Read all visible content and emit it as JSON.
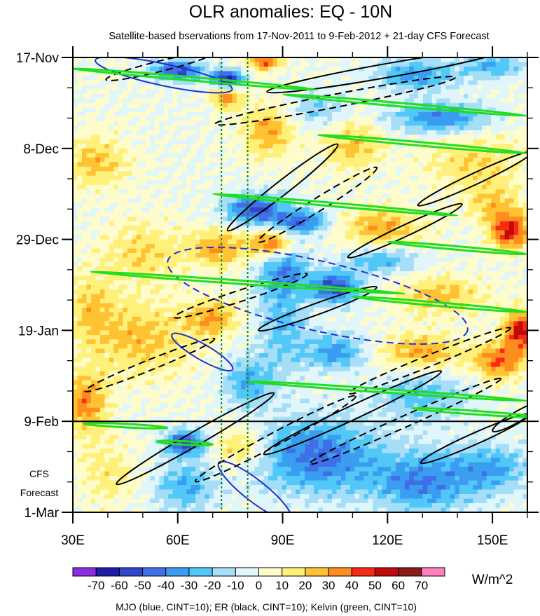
{
  "chart_data": {
    "type": "heatmap",
    "title": "OLR anomalies: EQ - 10N",
    "subtitle": "Satellite-based bservations from 17-Nov-2011 to 9-Feb-2012 + 21-day CFS Forecast",
    "x_axis": {
      "range": [
        30,
        160
      ],
      "ticks": [
        30,
        60,
        90,
        120,
        150
      ],
      "tick_labels": [
        "30E",
        "60E",
        "90E",
        "120E",
        "150E"
      ]
    },
    "y_axis": {
      "range_days": [
        0,
        105
      ],
      "ticks": [
        {
          "label": "17-Nov",
          "day": 0
        },
        {
          "label": "8-Dec",
          "day": 21
        },
        {
          "label": "29-Dec",
          "day": 42
        },
        {
          "label": "19-Jan",
          "day": 63
        },
        {
          "label": "9-Feb",
          "day": 84
        },
        {
          "label": "1-Mar",
          "day": 105
        }
      ]
    },
    "forecast_label_line1": "CFS",
    "forecast_label_line2": "Forecast",
    "forecast_start_day": 84,
    "reference_lon_lines": [
      72.5,
      80
    ],
    "colorbar": {
      "units": "W/m^2",
      "labels": [
        "-70",
        "-60",
        "-50",
        "-40",
        "-30",
        "-20",
        "-10",
        "0",
        "10",
        "20",
        "30",
        "40",
        "50",
        "60",
        "70"
      ],
      "colors": [
        "#8b2be2",
        "#1e1ea8",
        "#2e46c8",
        "#3f6fe6",
        "#3b9df0",
        "#52c8f8",
        "#a6def8",
        "#e0f6fb",
        "#fffccc",
        "#fff07a",
        "#ffc232",
        "#ff8c1e",
        "#f82a14",
        "#c00a0a",
        "#8b1a1a",
        "#ff7fbf"
      ]
    },
    "legend_text": "MJO (blue, CINT=10); ER (black, CINT=10); Kelvin (green, CINT=10)",
    "series_colors": {
      "MJO": "#1f2fd6",
      "ER": "#000000",
      "Kelvin": "#22dd22"
    },
    "anomaly_regions": [
      {
        "lon": 60,
        "day": 3,
        "val": -55,
        "sx": 5,
        "sy": 1.6
      },
      {
        "lon": 74,
        "day": 5,
        "val": -70,
        "sx": 3,
        "sy": 1.5
      },
      {
        "lon": 74,
        "day": 9,
        "val": 35,
        "sx": 3,
        "sy": 2
      },
      {
        "lon": 85,
        "day": 1,
        "val": 45,
        "sx": 3,
        "sy": 1.2
      },
      {
        "lon": 128,
        "day": 4,
        "val": -35,
        "sx": 8,
        "sy": 2.5
      },
      {
        "lon": 150,
        "day": 2,
        "val": -30,
        "sx": 6,
        "sy": 2
      },
      {
        "lon": 135,
        "day": 14,
        "val": -40,
        "sx": 10,
        "sy": 2.5
      },
      {
        "lon": 100,
        "day": 12,
        "val": -20,
        "sx": 6,
        "sy": 3
      },
      {
        "lon": 37,
        "day": 24,
        "val": 25,
        "sx": 6,
        "sy": 4
      },
      {
        "lon": 86,
        "day": 17,
        "val": 30,
        "sx": 5,
        "sy": 4
      },
      {
        "lon": 110,
        "day": 20,
        "val": 25,
        "sx": 6,
        "sy": 4
      },
      {
        "lon": 145,
        "day": 24,
        "val": 20,
        "sx": 10,
        "sy": 5
      },
      {
        "lon": 82,
        "day": 35,
        "val": -50,
        "sx": 6,
        "sy": 2.5
      },
      {
        "lon": 95,
        "day": 38,
        "val": -45,
        "sx": 6,
        "sy": 2
      },
      {
        "lon": 72,
        "day": 44,
        "val": 30,
        "sx": 6,
        "sy": 3
      },
      {
        "lon": 87,
        "day": 43,
        "val": 45,
        "sx": 4,
        "sy": 2.5
      },
      {
        "lon": 118,
        "day": 39,
        "val": 30,
        "sx": 8,
        "sy": 3
      },
      {
        "lon": 155,
        "day": 40,
        "val": 50,
        "sx": 4,
        "sy": 3
      },
      {
        "lon": 150,
        "day": 34,
        "val": 20,
        "sx": 5,
        "sy": 3
      },
      {
        "lon": 118,
        "day": 47,
        "val": -30,
        "sx": 7,
        "sy": 2
      },
      {
        "lon": 105,
        "day": 53,
        "val": -55,
        "sx": 5,
        "sy": 2.5
      },
      {
        "lon": 135,
        "day": 55,
        "val": 25,
        "sx": 9,
        "sy": 3
      },
      {
        "lon": 90,
        "day": 49,
        "val": -35,
        "sx": 5,
        "sy": 4
      },
      {
        "lon": 50,
        "day": 45,
        "val": 20,
        "sx": 8,
        "sy": 5
      },
      {
        "lon": 35,
        "day": 58,
        "val": 20,
        "sx": 5,
        "sy": 6
      },
      {
        "lon": 50,
        "day": 65,
        "val": 25,
        "sx": 10,
        "sy": 6
      },
      {
        "lon": 70,
        "day": 60,
        "val": 30,
        "sx": 5,
        "sy": 3
      },
      {
        "lon": 90,
        "day": 62,
        "val": -25,
        "sx": 5,
        "sy": 8
      },
      {
        "lon": 105,
        "day": 68,
        "val": -35,
        "sx": 6,
        "sy": 3
      },
      {
        "lon": 130,
        "day": 68,
        "val": 30,
        "sx": 8,
        "sy": 3
      },
      {
        "lon": 158,
        "day": 63,
        "val": 55,
        "sx": 3,
        "sy": 3
      },
      {
        "lon": 152,
        "day": 70,
        "val": 40,
        "sx": 5,
        "sy": 3
      },
      {
        "lon": 80,
        "day": 75,
        "val": -30,
        "sx": 5,
        "sy": 4
      },
      {
        "lon": 34,
        "day": 80,
        "val": 35,
        "sx": 4,
        "sy": 5
      },
      {
        "lon": 130,
        "day": 78,
        "val": -25,
        "sx": 9,
        "sy": 4
      },
      {
        "lon": 62,
        "day": 89,
        "val": -55,
        "sx": 4,
        "sy": 2
      },
      {
        "lon": 100,
        "day": 92,
        "val": -45,
        "sx": 12,
        "sy": 6
      },
      {
        "lon": 130,
        "day": 98,
        "val": -40,
        "sx": 10,
        "sy": 5
      },
      {
        "lon": 78,
        "day": 90,
        "val": 25,
        "sx": 5,
        "sy": 3
      },
      {
        "lon": 150,
        "day": 95,
        "val": -30,
        "sx": 8,
        "sy": 4
      },
      {
        "lon": 40,
        "day": 96,
        "val": 15,
        "sx": 6,
        "sy": 5
      },
      {
        "lon": 62,
        "day": 99,
        "val": -30,
        "sx": 6,
        "sy": 4
      }
    ],
    "contours": [
      {
        "kind": "MJO",
        "dashed": true,
        "lon": 100,
        "day": 55,
        "rx_deg": 44,
        "ry_day": 8,
        "angle": 13
      },
      {
        "kind": "MJO",
        "dashed": false,
        "lon": 56,
        "day": 4,
        "rx_deg": 20,
        "ry_day": 2.5,
        "angle": 12
      },
      {
        "kind": "MJO",
        "dashed": false,
        "lon": 67,
        "day": 68,
        "rx_deg": 10,
        "ry_day": 1.8,
        "angle": 30
      },
      {
        "kind": "MJO",
        "dashed": false,
        "lon": 82,
        "day": 100,
        "rx_deg": 13,
        "ry_day": 2.5,
        "angle": 38
      },
      {
        "kind": "ER",
        "dashed": true,
        "lon": 55,
        "day": 2,
        "rx_deg": 16,
        "ry_day": 1.2,
        "angle": -14
      },
      {
        "kind": "ER",
        "dashed": false,
        "lon": 120,
        "day": 3,
        "rx_deg": 35,
        "ry_day": 1.6,
        "angle": -10
      },
      {
        "kind": "ER",
        "dashed": true,
        "lon": 105,
        "day": 10,
        "rx_deg": 35,
        "ry_day": 1.5,
        "angle": -11
      },
      {
        "kind": "ER",
        "dashed": false,
        "lon": 90,
        "day": 30,
        "rx_deg": 20,
        "ry_day": 1.6,
        "angle": -38
      },
      {
        "kind": "ER",
        "dashed": true,
        "lon": 100,
        "day": 34,
        "rx_deg": 20,
        "ry_day": 1.5,
        "angle": -32
      },
      {
        "kind": "ER",
        "dashed": false,
        "lon": 125,
        "day": 40,
        "rx_deg": 18,
        "ry_day": 1.3,
        "angle": -25
      },
      {
        "kind": "ER",
        "dashed": true,
        "lon": 78,
        "day": 55,
        "rx_deg": 20,
        "ry_day": 1.3,
        "angle": -18
      },
      {
        "kind": "ER",
        "dashed": false,
        "lon": 100,
        "day": 58,
        "rx_deg": 18,
        "ry_day": 1.3,
        "angle": -20
      },
      {
        "kind": "ER",
        "dashed": true,
        "lon": 52,
        "day": 71,
        "rx_deg": 20,
        "ry_day": 1.2,
        "angle": -22
      },
      {
        "kind": "ER",
        "dashed": true,
        "lon": 132,
        "day": 70,
        "rx_deg": 25,
        "ry_day": 1.3,
        "angle": -22
      },
      {
        "kind": "ER",
        "dashed": false,
        "lon": 145,
        "day": 28,
        "rx_deg": 18,
        "ry_day": 1.3,
        "angle": -25
      },
      {
        "kind": "ER",
        "dashed": false,
        "lon": 145,
        "day": 88,
        "rx_deg": 17,
        "ry_day": 1.3,
        "angle": -24
      },
      {
        "kind": "ER",
        "dashed": false,
        "lon": 65,
        "day": 88,
        "rx_deg": 26,
        "ry_day": 1.6,
        "angle": -30
      },
      {
        "kind": "ER",
        "dashed": true,
        "lon": 88,
        "day": 88,
        "rx_deg": 26,
        "ry_day": 1.5,
        "angle": -28
      },
      {
        "kind": "ER",
        "dashed": false,
        "lon": 110,
        "day": 82,
        "rx_deg": 28,
        "ry_day": 1.6,
        "angle": -25
      },
      {
        "kind": "ER",
        "dashed": true,
        "lon": 125,
        "day": 84,
        "rx_deg": 30,
        "ry_day": 1.3,
        "angle": -24
      },
      {
        "kind": "ER",
        "dashed": false,
        "lon": 157,
        "day": 83,
        "rx_deg": 8,
        "ry_day": 1.2,
        "angle": -30
      },
      {
        "kind": "Kelvin",
        "dashed": false,
        "lon": 65,
        "day": 5,
        "rx_deg": 35,
        "ry_day": 0.4,
        "angle": 5
      },
      {
        "kind": "Kelvin",
        "dashed": false,
        "lon": 125,
        "day": 11,
        "rx_deg": 35,
        "ry_day": 0.4,
        "angle": 5
      },
      {
        "kind": "Kelvin",
        "dashed": false,
        "lon": 130,
        "day": 20,
        "rx_deg": 30,
        "ry_day": 0.4,
        "angle": 5
      },
      {
        "kind": "Kelvin",
        "dashed": false,
        "lon": 105,
        "day": 34,
        "rx_deg": 35,
        "ry_day": 0.4,
        "angle": 5
      },
      {
        "kind": "Kelvin",
        "dashed": false,
        "lon": 140,
        "day": 44,
        "rx_deg": 20,
        "ry_day": 0.4,
        "angle": 5
      },
      {
        "kind": "Kelvin",
        "dashed": false,
        "lon": 80,
        "day": 52,
        "rx_deg": 45,
        "ry_day": 0.4,
        "angle": 4
      },
      {
        "kind": "Kelvin",
        "dashed": false,
        "lon": 135,
        "day": 57,
        "rx_deg": 25,
        "ry_day": 0.4,
        "angle": 5
      },
      {
        "kind": "Kelvin",
        "dashed": false,
        "lon": 120,
        "day": 77,
        "rx_deg": 40,
        "ry_day": 0.4,
        "angle": 4
      },
      {
        "kind": "Kelvin",
        "dashed": false,
        "lon": 145,
        "day": 82,
        "rx_deg": 18,
        "ry_day": 0.4,
        "angle": 4
      },
      {
        "kind": "Kelvin",
        "dashed": false,
        "lon": 45,
        "day": 85,
        "rx_deg": 12,
        "ry_day": 0.4,
        "angle": 3
      },
      {
        "kind": "Kelvin",
        "dashed": false,
        "lon": 62,
        "day": 89,
        "rx_deg": 8,
        "ry_day": 0.4,
        "angle": 3
      }
    ]
  }
}
